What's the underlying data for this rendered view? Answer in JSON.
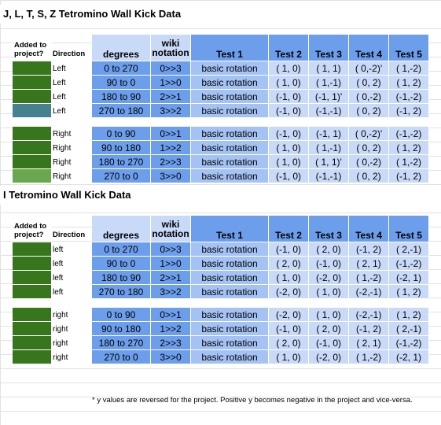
{
  "colors": {
    "dark_green": "#38761d",
    "teal": "#45818e",
    "light_green": "#6aa84f",
    "blue": "#6d9eeb",
    "light_blue": "#a4c2f4",
    "pale_blue": "#c9daf8"
  },
  "headers": {
    "added": "Added to project?",
    "direction": "Direction",
    "degrees": "degrees",
    "wiki": "wiki notation",
    "test1": "Test 1",
    "test2": "Test 2",
    "test3": "Test 3",
    "test4": "Test 4",
    "test5": "Test 5"
  },
  "footnote": "* y values are reversed for the project. Positive y becomes negative in the project and vice-versa.",
  "sections": [
    {
      "title": "J, L, T, S, Z Tetromino Wall Kick Data",
      "groups": [
        [
          {
            "swatch": "dark_green",
            "dir": "Left",
            "deg": "0 to 270",
            "wiki": "0>>3",
            "t1": "basic rotation",
            "t2": "( 1, 0)",
            "t3": "( 1, 1)",
            "t4": "( 0,-2)'",
            "t5": "( 1,-2)"
          },
          {
            "swatch": "dark_green",
            "dir": "Left",
            "deg": "90 to 0",
            "wiki": "1>>0",
            "t1": "basic rotation",
            "t2": "( 1, 0)",
            "t3": "( 1,-1)",
            "t4": "( 0, 2)",
            "t5": "( 1, 2)"
          },
          {
            "swatch": "dark_green",
            "dir": "Left",
            "deg": "180 to 90",
            "wiki": "2>>1",
            "t1": "basic rotation",
            "t2": "(-1, 0)",
            "t3": "(-1, 1)'",
            "t4": "( 0,-2)",
            "t5": "(-1,-2)"
          },
          {
            "swatch": "teal",
            "dir": "Left",
            "deg": "270 to 180",
            "wiki": "3>>2",
            "t1": "basic rotation",
            "t2": "(-1, 0)",
            "t3": "(-1,-1)",
            "t4": "( 0, 2)",
            "t5": "(-1, 2)"
          }
        ],
        [
          {
            "swatch": "dark_green",
            "dir": "Right",
            "deg": "0 to 90",
            "wiki": "0>>1",
            "t1": "basic rotation",
            "t2": "(-1, 0)",
            "t3": "(-1, 1)",
            "t4": "( 0,-2)'",
            "t5": "(-1,-2)"
          },
          {
            "swatch": "dark_green",
            "dir": "Right",
            "deg": "90 to 180",
            "wiki": "1>>2",
            "t1": "basic rotation",
            "t2": "( 1, 0)",
            "t3": "( 1,-1)",
            "t4": "( 0, 2)",
            "t5": "( 1, 2)"
          },
          {
            "swatch": "dark_green",
            "dir": "Right",
            "deg": "180 to 270",
            "wiki": "2>>3",
            "t1": "basic rotation",
            "t2": "( 1, 0)",
            "t3": "( 1, 1)'",
            "t4": "( 0,-2)",
            "t5": "( 1,-2)"
          },
          {
            "swatch": "light_green",
            "dir": "Right",
            "deg": "270 to 0",
            "wiki": "3>>0",
            "t1": "basic rotation",
            "t2": "(-1, 0)",
            "t3": "(-1,-1)",
            "t4": "( 0, 2)",
            "t5": "(-1, 2)"
          }
        ]
      ]
    },
    {
      "title": "I Tetromino Wall Kick Data",
      "groups": [
        [
          {
            "swatch": "dark_green",
            "dir": "left",
            "deg": "0 to 270",
            "wiki": "0>>3",
            "t1": "basic rotation",
            "t2": "(-1, 0)",
            "t3": "( 2, 0)",
            "t4": "(-1, 2)",
            "t5": "( 2,-1)"
          },
          {
            "swatch": "dark_green",
            "dir": "left",
            "deg": "90 to 0",
            "wiki": "1>>0",
            "t1": "basic rotation",
            "t2": "( 2, 0)",
            "t3": "(-1, 0)",
            "t4": "( 2, 1)",
            "t5": "(-1,-2)"
          },
          {
            "swatch": "dark_green",
            "dir": "left",
            "deg": "180 to 90",
            "wiki": "2>>1",
            "t1": "basic rotation",
            "t2": "( 1, 0)",
            "t3": "(-2, 0)",
            "t4": "( 1,-2)",
            "t5": "(-2, 1)"
          },
          {
            "swatch": "dark_green",
            "dir": "left",
            "deg": "270 to 180",
            "wiki": "3>>2",
            "t1": "basic rotation",
            "t2": "(-2, 0)",
            "t3": "( 1, 0)",
            "t4": "(-2,-1)",
            "t5": "( 1, 2)"
          }
        ],
        [
          {
            "swatch": "dark_green",
            "dir": "right",
            "deg": "0 to 90",
            "wiki": "0>>1",
            "t1": "basic rotation",
            "t2": "(-2, 0)",
            "t3": "( 1, 0)",
            "t4": "(-2,-1)",
            "t5": "( 1, 2)"
          },
          {
            "swatch": "dark_green",
            "dir": "right",
            "deg": "90 to 180",
            "wiki": "1>>2",
            "t1": "basic rotation",
            "t2": "(-1, 0)",
            "t3": "( 2, 0)",
            "t4": "(-1, 2)",
            "t5": "( 2,-1)"
          },
          {
            "swatch": "dark_green",
            "dir": "right",
            "deg": "180 to 270",
            "wiki": "2>>3",
            "t1": "basic rotation",
            "t2": "( 2, 0)",
            "t3": "(-1, 0)",
            "t4": "( 2, 1)",
            "t5": "(-1,-2)"
          },
          {
            "swatch": "dark_green",
            "dir": "right",
            "deg": "270 to 0",
            "wiki": "3>>0",
            "t1": "basic rotation",
            "t2": "( 1, 0)",
            "t3": "(-2, 0)",
            "t4": "( 1,-2)",
            "t5": "(-2, 1)"
          }
        ]
      ]
    }
  ]
}
